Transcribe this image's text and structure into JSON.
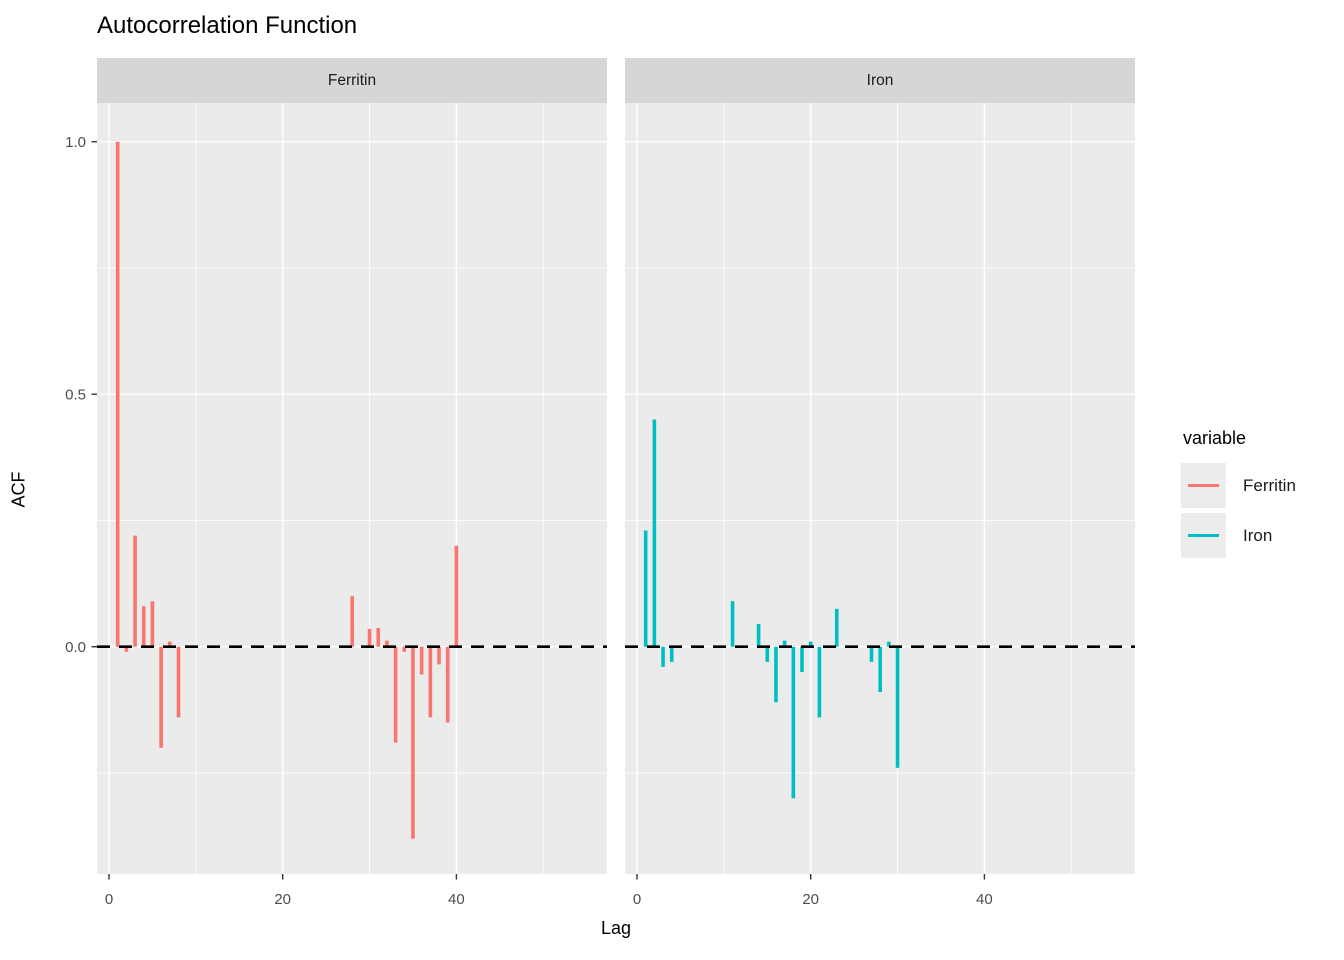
{
  "title": "Autocorrelation Function",
  "chart_data": {
    "type": "bar",
    "subtype": "autocorrelation-linerange",
    "title": "Autocorrelation Function",
    "xlabel": "Lag",
    "ylabel": "ACF",
    "facets": [
      {
        "name": "Ferritin",
        "color": "#F8766D",
        "points": [
          [
            1,
            1.0
          ],
          [
            2,
            -0.01
          ],
          [
            3,
            0.22
          ],
          [
            4,
            0.08
          ],
          [
            5,
            0.09
          ],
          [
            6,
            -0.2
          ],
          [
            7,
            0.01
          ],
          [
            8,
            -0.14
          ],
          [
            28,
            0.1
          ],
          [
            30,
            0.035
          ],
          [
            31,
            0.037
          ],
          [
            32,
            0.012
          ],
          [
            33,
            -0.19
          ],
          [
            34,
            -0.01
          ],
          [
            35,
            -0.38
          ],
          [
            36,
            -0.055
          ],
          [
            37,
            -0.14
          ],
          [
            38,
            -0.035
          ],
          [
            39,
            -0.15
          ],
          [
            40,
            0.2
          ]
        ]
      },
      {
        "name": "Iron",
        "color": "#00BFC4",
        "points": [
          [
            1,
            0.23
          ],
          [
            2,
            0.45
          ],
          [
            3,
            -0.04
          ],
          [
            4,
            -0.03
          ],
          [
            11,
            0.09
          ],
          [
            14,
            0.045
          ],
          [
            15,
            -0.03
          ],
          [
            16,
            -0.11
          ],
          [
            17,
            0.012
          ],
          [
            18,
            -0.3
          ],
          [
            19,
            -0.05
          ],
          [
            20,
            0.01
          ],
          [
            21,
            -0.14
          ],
          [
            23,
            0.075
          ],
          [
            27,
            -0.03
          ],
          [
            28,
            -0.09
          ],
          [
            29,
            0.01
          ],
          [
            30,
            -0.24
          ]
        ]
      }
    ],
    "x_ticks": [
      [
        0,
        "0"
      ],
      [
        20,
        "20"
      ],
      [
        40,
        "40"
      ]
    ],
    "y_ticks": [
      [
        1.0,
        "1.0"
      ],
      [
        0.5,
        "0.5"
      ],
      [
        0.0,
        "0.0"
      ]
    ],
    "x_minor_gridlines": [
      10,
      30,
      50
    ],
    "y_minor_gridlines": [
      -0.25,
      0.25,
      0.75
    ],
    "xlim": [
      -1.4,
      57.3
    ],
    "ylim": [
      -0.447,
      1.07
    ],
    "grid": true,
    "zero_line": {
      "value": 0,
      "style": "dashed",
      "color": "#000000"
    },
    "legend": {
      "title": "variable",
      "position": "right",
      "entries": [
        {
          "label": "Ferritin",
          "color": "#F8766D"
        },
        {
          "label": "Iron",
          "color": "#00BFC4"
        }
      ]
    },
    "colors": {
      "panel_background": "#EBEBEB",
      "strip_background": "#D6D6D6",
      "gridline": "#FFFFFF",
      "axis_text": "#4D4D4D",
      "tick_mark": "#333333",
      "page_background": "#FFFFFF"
    }
  }
}
